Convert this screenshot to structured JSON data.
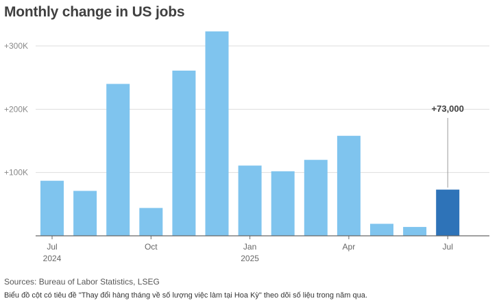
{
  "chart_data": {
    "type": "bar",
    "title": "Monthly change in US jobs",
    "xlabel": "",
    "ylabel": "",
    "ylim": [
      0,
      330000
    ],
    "yticks": [
      100000,
      200000,
      300000
    ],
    "ytick_labels": [
      "+100K",
      "+200K",
      "+300K"
    ],
    "categories": [
      "Jul 2024",
      "Aug 2024",
      "Sep 2024",
      "Oct 2024",
      "Nov 2024",
      "Dec 2024",
      "Jan 2025",
      "Feb 2025",
      "Mar 2025",
      "Apr 2025",
      "May 2025",
      "Jun 2025",
      "Jul 2025"
    ],
    "values": [
      87000,
      71000,
      240000,
      44000,
      261000,
      323000,
      111000,
      102000,
      120000,
      158000,
      19000,
      14000,
      73000
    ],
    "xtick_labels": [
      {
        "index": 0,
        "month": "Jul",
        "year": "2024"
      },
      {
        "index": 3,
        "month": "Oct",
        "year": ""
      },
      {
        "index": 6,
        "month": "Jan",
        "year": "2025"
      },
      {
        "index": 9,
        "month": "Apr",
        "year": ""
      },
      {
        "index": 12,
        "month": "Jul",
        "year": ""
      }
    ],
    "highlight": {
      "index": 12,
      "label": "+73,000"
    },
    "colors": {
      "bar": "#7fc4ee",
      "highlight": "#2e73b8",
      "grid": "#dddddd",
      "axis": "#666666"
    },
    "grid": true
  },
  "source": "Sources: Bureau of Labor Statistics, LSEG",
  "caption": "Biểu đồ cột có tiêu đề \"Thay đổi hàng tháng về số lượng việc làm tại Hoa Kỳ\" theo dõi số liệu trong năm qua."
}
